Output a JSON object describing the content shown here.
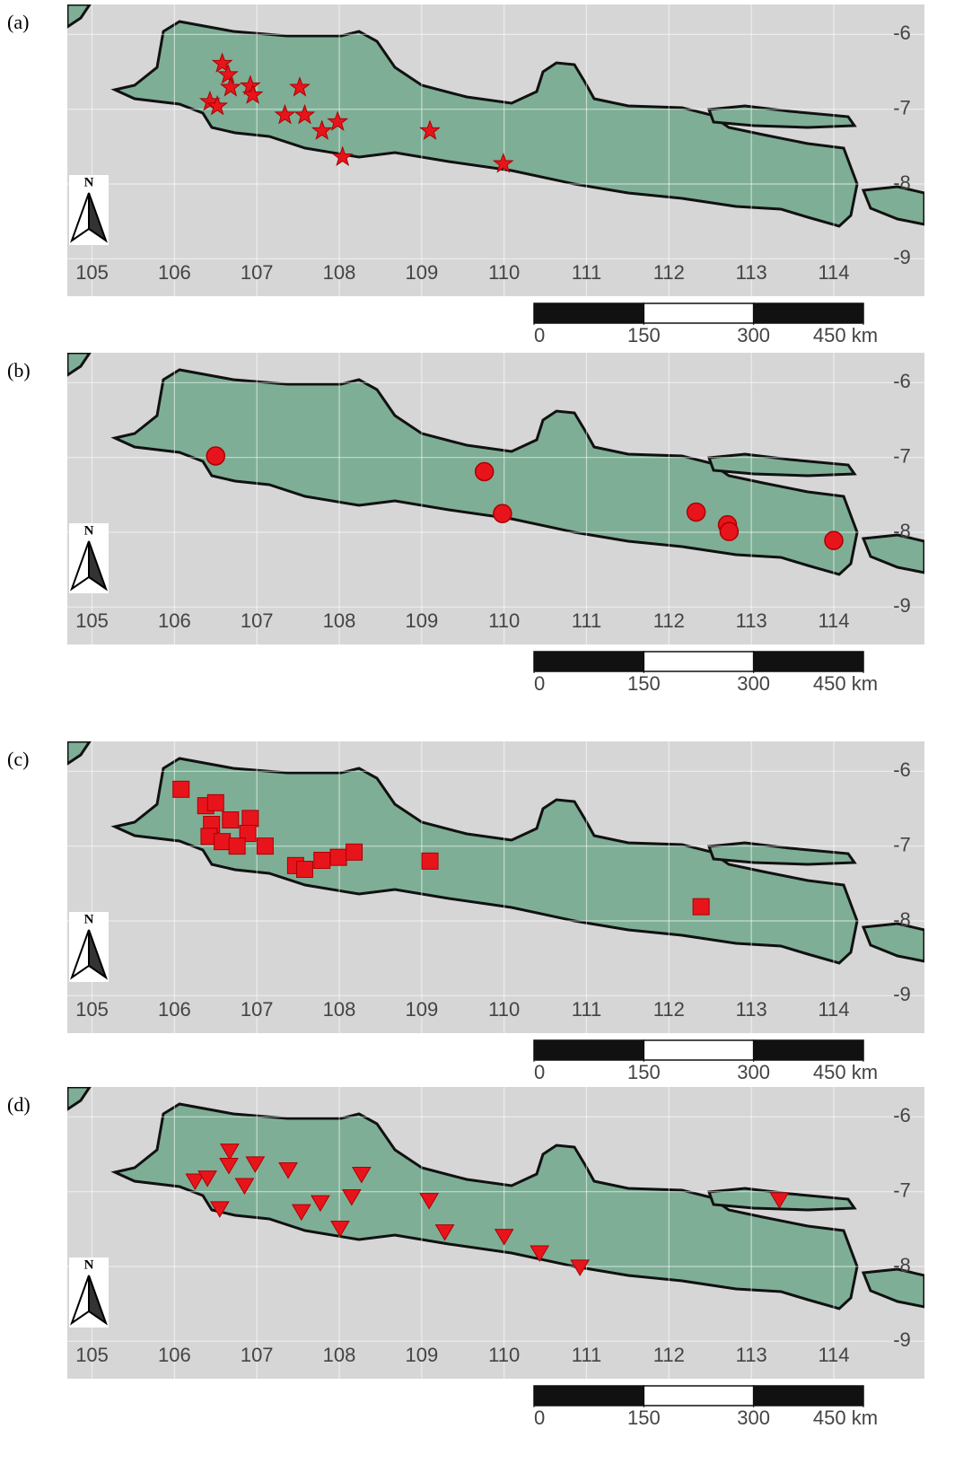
{
  "map": {
    "xlim": [
      104.7,
      115.1
    ],
    "ylim": [
      -9.5,
      -5.6
    ],
    "xticks": [
      105,
      106,
      107,
      108,
      109,
      110,
      111,
      112,
      113,
      114
    ],
    "yticks": [
      -6,
      -7,
      -8,
      -9
    ],
    "north": "N",
    "scale_ticks": [
      0,
      150,
      300,
      {
        "value": 450,
        "label": "450 km"
      }
    ],
    "marker_color": "#e8141c",
    "panels": [
      {
        "label": "(a)",
        "marker": "star",
        "points": {
          "lon": [
            106.58,
            106.65,
            106.68,
            106.92,
            106.95,
            106.43,
            106.52,
            107.52,
            107.34,
            107.58,
            107.79,
            107.98,
            108.04,
            109.1,
            109.99
          ],
          "lat": [
            -6.39,
            -6.54,
            -6.71,
            -6.69,
            -6.81,
            -6.9,
            -6.96,
            -6.71,
            -7.08,
            -7.08,
            -7.29,
            -7.17,
            -7.64,
            -7.29,
            -7.73
          ]
        }
      },
      {
        "label": "(b)",
        "marker": "circle",
        "points": {
          "lon": [
            106.5,
            109.76,
            109.98,
            112.33,
            112.71,
            112.73,
            114.0
          ],
          "lat": [
            -6.98,
            -7.19,
            -7.75,
            -7.73,
            -7.9,
            -7.99,
            -8.11
          ]
        }
      },
      {
        "label": "(c)",
        "marker": "square",
        "points": {
          "lon": [
            106.08,
            106.38,
            106.5,
            106.45,
            106.68,
            106.92,
            106.89,
            106.42,
            106.58,
            106.76,
            107.1,
            107.47,
            107.58,
            107.79,
            107.99,
            108.18,
            109.1,
            112.39
          ],
          "lat": [
            -6.24,
            -6.46,
            -6.42,
            -6.71,
            -6.65,
            -6.63,
            -6.83,
            -6.87,
            -6.94,
            -7.0,
            -7.0,
            -7.26,
            -7.31,
            -7.19,
            -7.15,
            -7.08,
            -7.2,
            -7.81
          ]
        }
      },
      {
        "label": "(d)",
        "marker": "triangle",
        "points": {
          "lon": [
            106.25,
            106.4,
            106.67,
            106.66,
            106.98,
            106.85,
            107.38,
            108.27,
            106.55,
            107.54,
            107.77,
            108.15,
            108.01,
            109.09,
            109.28,
            110.0,
            110.43,
            110.92,
            113.34
          ],
          "lat": [
            -6.86,
            -6.82,
            -6.46,
            -6.65,
            -6.63,
            -6.92,
            -6.71,
            -6.77,
            -7.23,
            -7.27,
            -7.15,
            -7.07,
            -7.49,
            -7.12,
            -7.54,
            -7.6,
            -7.82,
            -8.01,
            -7.11
          ]
        }
      }
    ]
  }
}
